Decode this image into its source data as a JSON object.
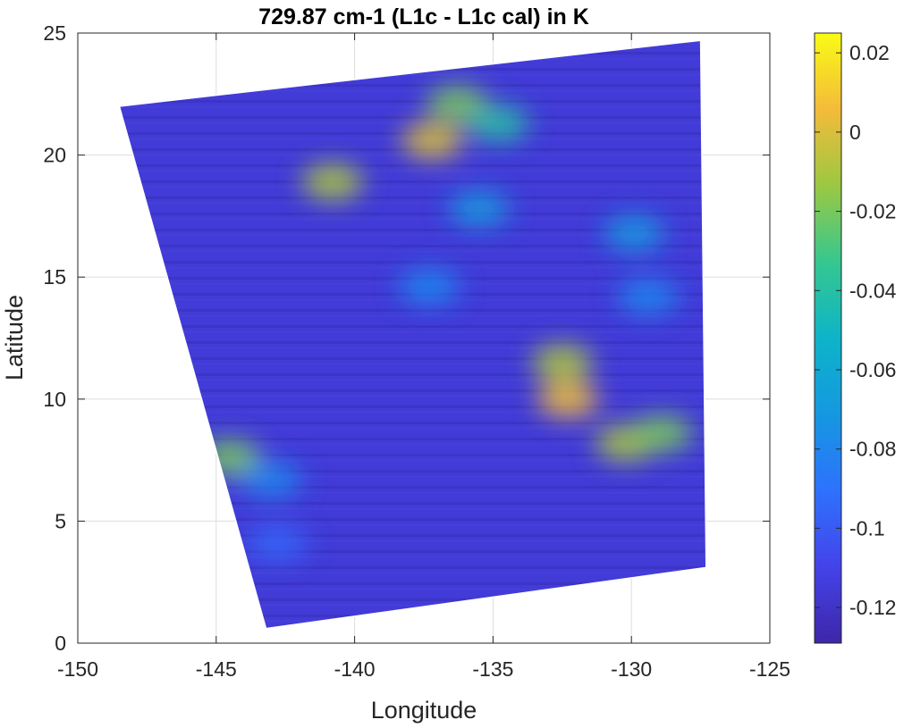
{
  "chart_data": {
    "type": "scatter",
    "title": "729.87 cm-1  (L1c - L1c cal) in K",
    "xlabel": "Longitude",
    "ylabel": "Latitude",
    "xlim": [
      -150,
      -125
    ],
    "ylim": [
      0,
      25
    ],
    "xticks": [
      "-150",
      "-145",
      "-140",
      "-135",
      "-130",
      "-125"
    ],
    "yticks": [
      "0",
      "5",
      "10",
      "15",
      "20",
      "25"
    ],
    "grid": true,
    "colormap": "parula",
    "colorbar": {
      "range": [
        -0.129,
        0.025
      ],
      "ticks": [
        "0.02",
        "0",
        "-0.02",
        "-0.04",
        "-0.06",
        "-0.08",
        "-0.1",
        "-0.12"
      ]
    },
    "swath": {
      "corners": [
        {
          "lon": -148.5,
          "lat": 22.0
        },
        {
          "lon": -127.5,
          "lat": 24.7
        },
        {
          "lon": -127.3,
          "lat": 3.1
        },
        {
          "lon": -143.2,
          "lat": 0.6
        }
      ],
      "background_value": -0.115
    },
    "features": [
      {
        "lon": -137.2,
        "lat": 20.6,
        "value": 0.0
      },
      {
        "lon": -136.3,
        "lat": 22.1,
        "value": -0.02
      },
      {
        "lon": -134.8,
        "lat": 21.3,
        "value": -0.04
      },
      {
        "lon": -135.5,
        "lat": 17.8,
        "value": -0.07
      },
      {
        "lon": -137.3,
        "lat": 14.6,
        "value": -0.08
      },
      {
        "lon": -140.8,
        "lat": 18.9,
        "value": -0.01
      },
      {
        "lon": -132.3,
        "lat": 10.0,
        "value": 0.005
      },
      {
        "lon": -132.5,
        "lat": 11.5,
        "value": -0.01
      },
      {
        "lon": -130.2,
        "lat": 8.2,
        "value": -0.01
      },
      {
        "lon": -128.9,
        "lat": 8.6,
        "value": -0.02
      },
      {
        "lon": -144.5,
        "lat": 7.6,
        "value": -0.02
      },
      {
        "lon": -143.0,
        "lat": 6.7,
        "value": -0.08
      },
      {
        "lon": -129.9,
        "lat": 16.8,
        "value": -0.07
      },
      {
        "lon": -129.4,
        "lat": 14.2,
        "value": -0.08
      },
      {
        "lon": -142.8,
        "lat": 4.1,
        "value": -0.095
      }
    ]
  }
}
